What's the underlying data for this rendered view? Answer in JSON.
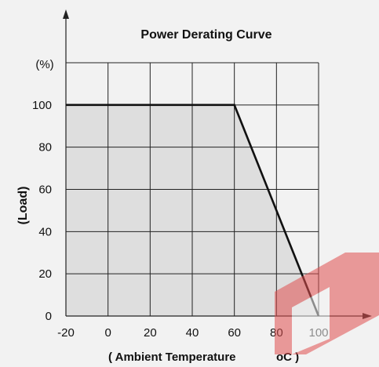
{
  "chart_data": {
    "type": "area",
    "title": "Power Derating Curve",
    "ylabel": "(Load)",
    "y_unit": "(%)",
    "xlabel": "( Ambient Temperature",
    "xlabel_unit": "oC )",
    "x_ticks": [
      "-20",
      "0",
      "20",
      "40",
      "60",
      "80",
      "100"
    ],
    "y_ticks": [
      "0",
      "20",
      "40",
      "60",
      "80",
      "100"
    ],
    "xlim": [
      -20,
      100
    ],
    "ylim": [
      0,
      120
    ],
    "grid": true,
    "series": [
      {
        "x": [
          -20,
          60,
          100
        ],
        "y": [
          100,
          100,
          0
        ]
      }
    ],
    "colors": {
      "curve": "#111111",
      "fill": "#dedede",
      "grid": "#222222",
      "watermark": "#e05050"
    }
  }
}
